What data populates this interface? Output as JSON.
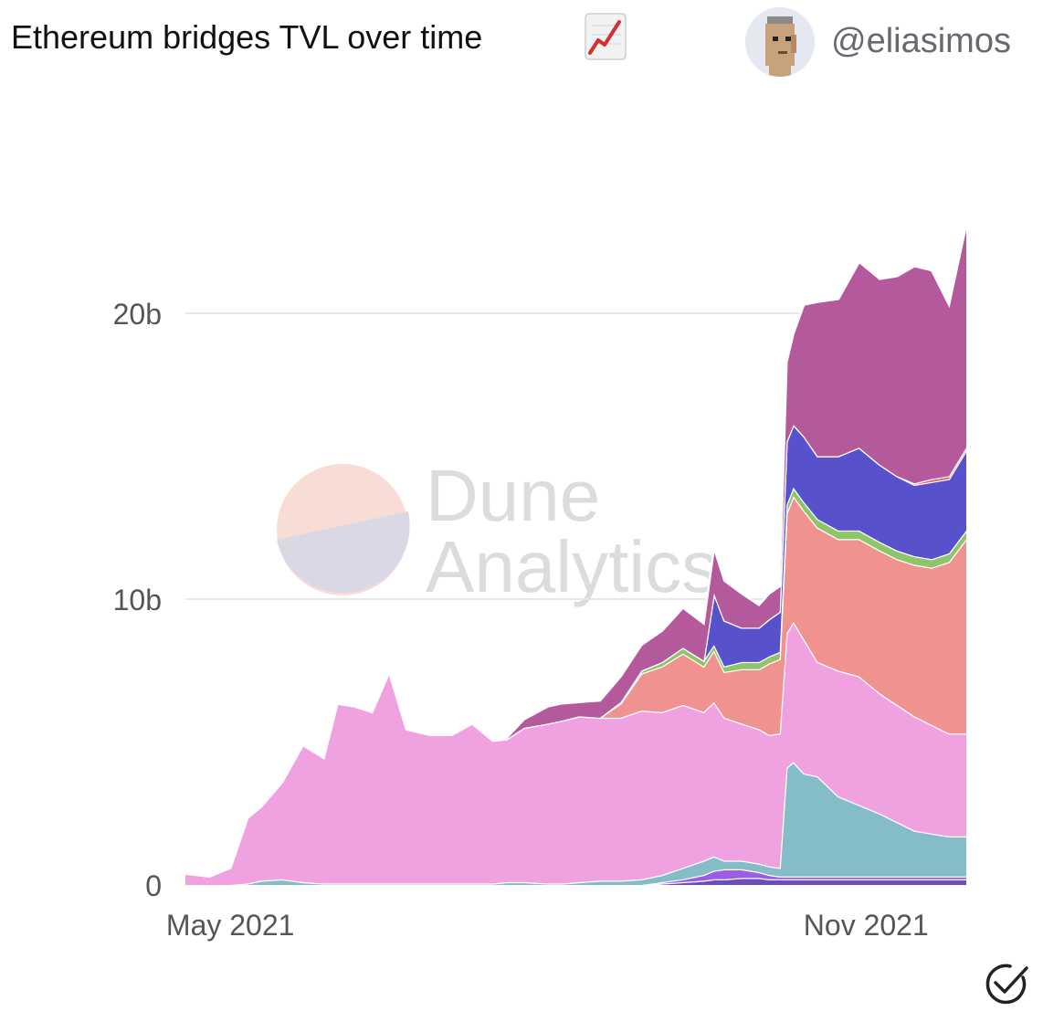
{
  "header": {
    "title": "Ethereum bridges TVL over time",
    "title_icon": "chart-increasing-icon",
    "avatar_icon": "pixel-punk-avatar-icon",
    "username": "@eliasimos"
  },
  "watermark": {
    "line1": "Dune",
    "line2": "Analytics",
    "logo_icon": "dune-logo-icon"
  },
  "footer": {
    "verified_icon": "check-circle-icon"
  },
  "chart_data": {
    "type": "area",
    "stacked": true,
    "title": "Ethereum bridges TVL over time",
    "xlabel": "",
    "ylabel": "",
    "ylim": [
      0,
      26
    ],
    "y_unit": "billions USD",
    "y_ticks": [
      {
        "value": 0,
        "label": "0"
      },
      {
        "value": 10,
        "label": "10b"
      },
      {
        "value": 20,
        "label": "20b"
      }
    ],
    "x_range": [
      "2021-04-18",
      "2021-11-30"
    ],
    "x_ticks": [
      {
        "date": "2021-05-01",
        "label": "May 2021"
      },
      {
        "date": "2021-11-01",
        "label": "Nov 2021"
      }
    ],
    "grid": true,
    "legend": "none",
    "x": [
      "2021-04-18",
      "2021-04-25",
      "2021-05-01",
      "2021-05-06",
      "2021-05-10",
      "2021-05-16",
      "2021-05-22",
      "2021-05-28",
      "2021-06-01",
      "2021-06-06",
      "2021-06-11",
      "2021-06-16",
      "2021-06-21",
      "2021-06-28",
      "2021-07-04",
      "2021-07-10",
      "2021-07-16",
      "2021-07-20",
      "2021-07-25",
      "2021-08-01",
      "2021-08-05",
      "2021-08-10",
      "2021-08-16",
      "2021-08-22",
      "2021-08-28",
      "2021-09-03",
      "2021-09-09",
      "2021-09-15",
      "2021-09-18",
      "2021-09-21",
      "2021-09-26",
      "2021-10-01",
      "2021-10-04",
      "2021-10-07",
      "2021-10-09",
      "2021-10-11",
      "2021-10-14",
      "2021-10-18",
      "2021-10-24",
      "2021-10-30",
      "2021-11-05",
      "2021-11-10",
      "2021-11-15",
      "2021-11-20",
      "2021-11-25",
      "2021-11-30"
    ],
    "series": [
      {
        "color": "#6b4fb8",
        "values": [
          0,
          0,
          0,
          0,
          0,
          0,
          0,
          0,
          0,
          0,
          0,
          0,
          0,
          0,
          0,
          0,
          0,
          0,
          0,
          0,
          0,
          0,
          0,
          0,
          0,
          0.05,
          0.1,
          0.15,
          0.2,
          0.2,
          0.25,
          0.25,
          0.2,
          0.2,
          0.2,
          0.2,
          0.2,
          0.2,
          0.2,
          0.2,
          0.2,
          0.2,
          0.2,
          0.2,
          0.2,
          0.2
        ]
      },
      {
        "color": "#9b5de5",
        "values": [
          0,
          0,
          0,
          0,
          0,
          0,
          0,
          0,
          0,
          0,
          0,
          0,
          0,
          0,
          0,
          0,
          0,
          0,
          0,
          0,
          0,
          0,
          0,
          0,
          0,
          0.05,
          0.1,
          0.2,
          0.3,
          0.35,
          0.3,
          0.2,
          0.15,
          0.1,
          0.1,
          0.1,
          0.1,
          0.1,
          0.1,
          0.1,
          0.1,
          0.1,
          0.1,
          0.1,
          0.1,
          0.1
        ]
      },
      {
        "color": "#84bcc8",
        "values": [
          0,
          0,
          0,
          0.05,
          0.15,
          0.2,
          0.1,
          0.05,
          0.05,
          0.05,
          0.05,
          0.05,
          0.05,
          0.05,
          0.05,
          0.05,
          0.05,
          0.1,
          0.1,
          0.05,
          0.05,
          0.1,
          0.15,
          0.15,
          0.2,
          0.25,
          0.4,
          0.5,
          0.5,
          0.3,
          0.3,
          0.3,
          0.3,
          0.3,
          3.8,
          4.0,
          3.6,
          3.5,
          2.8,
          2.5,
          2.2,
          1.9,
          1.6,
          1.5,
          1.4,
          1.4
        ]
      },
      {
        "color": "#f0a2e0",
        "values": [
          0.4,
          0.3,
          0.6,
          2.3,
          2.6,
          3.4,
          4.8,
          4.4,
          6.3,
          6.2,
          6.0,
          7.4,
          5.4,
          5.2,
          5.2,
          5.6,
          5.0,
          5.0,
          5.4,
          5.6,
          5.7,
          5.8,
          5.7,
          5.7,
          5.9,
          5.7,
          5.7,
          5.2,
          5.4,
          5.0,
          4.8,
          4.7,
          4.6,
          4.7,
          4.7,
          4.9,
          4.7,
          4.0,
          4.4,
          4.5,
          4.2,
          4.1,
          4.0,
          3.8,
          3.6,
          3.6
        ]
      },
      {
        "color": "#f0928f",
        "values": [
          0,
          0,
          0,
          0,
          0,
          0,
          0,
          0,
          0,
          0,
          0,
          0,
          0,
          0,
          0,
          0,
          0,
          0,
          0,
          0,
          0,
          0,
          0,
          0.5,
          1.3,
          1.6,
          1.8,
          1.6,
          1.8,
          1.6,
          1.9,
          2.1,
          2.5,
          2.6,
          4.2,
          4.4,
          4.5,
          4.7,
          4.6,
          4.8,
          5.0,
          5.1,
          5.3,
          5.5,
          6.0,
          6.8
        ]
      },
      {
        "color": "#8fc46a",
        "values": [
          0,
          0,
          0,
          0,
          0,
          0,
          0,
          0,
          0,
          0,
          0,
          0,
          0,
          0,
          0,
          0,
          0,
          0,
          0,
          0,
          0,
          0,
          0,
          0.05,
          0.1,
          0.15,
          0.2,
          0.2,
          0.2,
          0.2,
          0.25,
          0.25,
          0.25,
          0.25,
          0.3,
          0.3,
          0.3,
          0.3,
          0.3,
          0.3,
          0.3,
          0.3,
          0.3,
          0.3,
          0.3,
          0.3
        ]
      },
      {
        "color": "#5752cc",
        "values": [
          0,
          0,
          0,
          0,
          0,
          0,
          0,
          0,
          0,
          0,
          0,
          0,
          0,
          0,
          0,
          0,
          0,
          0,
          0,
          0,
          0,
          0,
          0,
          0,
          0,
          0,
          0,
          0,
          1.8,
          1.6,
          1.2,
          1.2,
          1.3,
          1.4,
          2.2,
          2.2,
          2.3,
          2.2,
          2.6,
          2.9,
          2.7,
          2.6,
          2.5,
          2.7,
          2.6,
          2.8
        ]
      },
      {
        "color": "#e06464",
        "values": [
          0,
          0,
          0,
          0,
          0,
          0,
          0,
          0,
          0,
          0,
          0,
          0,
          0,
          0,
          0,
          0,
          0,
          0,
          0,
          0,
          0,
          0,
          0,
          0,
          0,
          0,
          0,
          0,
          0,
          0,
          0,
          0,
          0,
          0,
          0,
          0,
          0,
          0,
          0,
          0,
          0,
          0,
          0.05,
          0.1,
          0.1,
          0.1
        ]
      },
      {
        "color": "#b45a9c",
        "values": [
          0,
          0,
          0,
          0,
          0,
          0,
          0,
          0,
          0,
          0,
          0,
          0,
          0,
          0,
          0,
          0,
          0,
          0.05,
          0.3,
          0.6,
          0.6,
          0.5,
          0.6,
          0.9,
          0.9,
          1.1,
          1.4,
          1.3,
          1.6,
          1.4,
          1.2,
          0.8,
          0.9,
          0.9,
          2.8,
          3.2,
          4.6,
          5.4,
          5.5,
          6.5,
          6.5,
          7.0,
          7.6,
          7.3,
          6.0,
          7.8
        ]
      }
    ]
  }
}
